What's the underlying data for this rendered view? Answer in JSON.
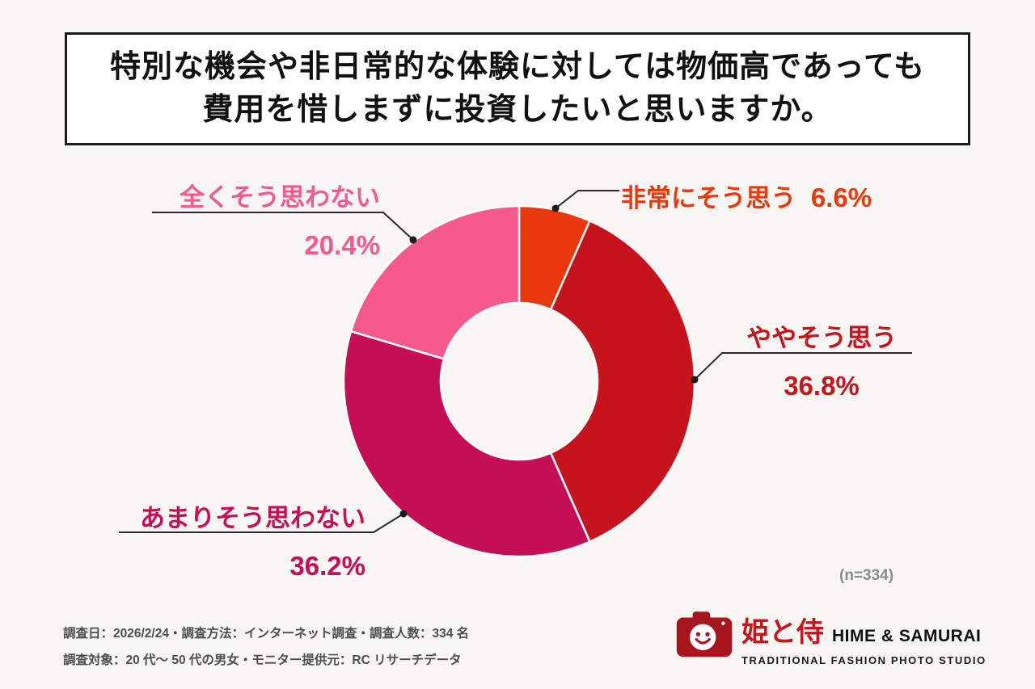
{
  "title": {
    "line1": "特別な機会や非日常的な体験に対しては物価高であっても",
    "line2": "費用を惜しまずに投資したいと思いますか。"
  },
  "chart_data": {
    "type": "pie",
    "subtype": "donut",
    "title": "特別な機会や非日常的な体験に対しては物価高であっても費用を惜しまずに投資したいと思いますか。",
    "start_angle_deg": 0,
    "direction": "clockwise",
    "n": 334,
    "segments": [
      {
        "label": "非常にそう思う",
        "value": 6.6,
        "color": "#e8380d"
      },
      {
        "label": "ややそう思う",
        "value": 36.8,
        "color": "#c6141f"
      },
      {
        "label": "あまりそう思わない",
        "value": 36.2,
        "color": "#c50e56"
      },
      {
        "label": "全くそう思わない",
        "value": 20.4,
        "color": "#f45b8a"
      }
    ]
  },
  "labels": {
    "very": {
      "text": "非常にそう思う",
      "pct": "6.6%"
    },
    "somewhat": {
      "text": "ややそう思う",
      "pct": "36.8%"
    },
    "not_really": {
      "text": "あまりそう思わない",
      "pct": "36.2%"
    },
    "not_at_all": {
      "text": "全くそう思わない",
      "pct": "20.4%"
    }
  },
  "n_note": "(n=334)",
  "footer": {
    "line1": "調査日：2026/2/24・調査方法：インターネット調査・調査人数：334 名",
    "line2": "調査対象：20 代〜 50 代の男女・モニター提供元：RC リサーチデータ"
  },
  "logo": {
    "jp": "姫と侍",
    "en": "HIME & SAMURAI",
    "sub": "TRADITIONAL FASHION PHOTO STUDIO",
    "icon": "camera-smiley-icon",
    "brand_color": "#c3161c"
  }
}
